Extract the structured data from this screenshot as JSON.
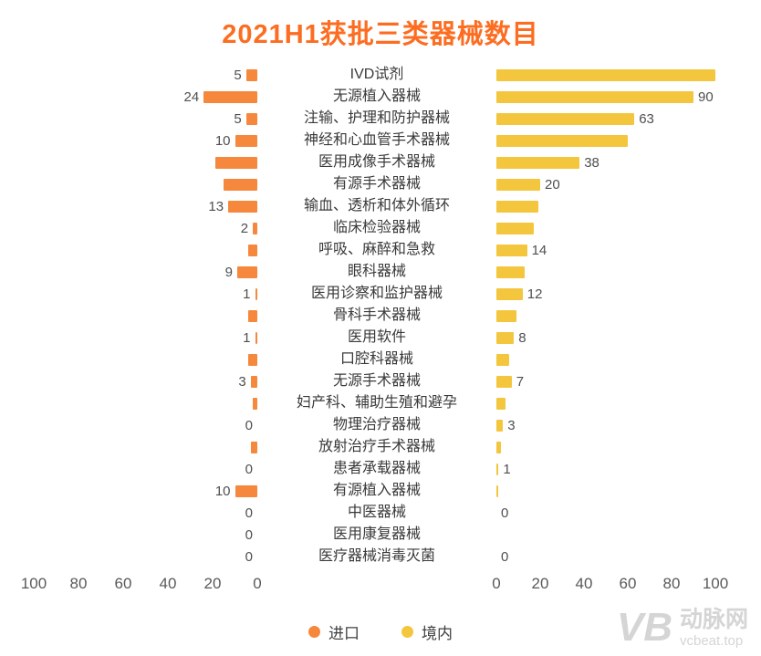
{
  "title": "2021H1获批三类器械数目",
  "colors": {
    "title": "#FD6D21",
    "import_bar": "#F5883D",
    "domestic_bar": "#F4C63E",
    "text": "#3A3A3A",
    "axis_text": "#595959",
    "watermark": "#D5D5D5"
  },
  "axis": {
    "left_ticks": [
      "100",
      "80",
      "60",
      "40",
      "20",
      "0"
    ],
    "right_ticks": [
      "0",
      "20",
      "40",
      "60",
      "80",
      "100"
    ],
    "max": 100
  },
  "legend": {
    "items": [
      {
        "label": "进口",
        "color": "#F5883D"
      },
      {
        "label": "境内",
        "color": "#F4C63E"
      }
    ]
  },
  "watermark": {
    "logo_text": "VB",
    "brand": "动脉网",
    "site": "vcbeat.top"
  },
  "chart_data": {
    "type": "bar",
    "variant": "diverging-horizontal-tornado",
    "title": "2021H1获批三类器械数目",
    "xlim": [
      0,
      100
    ],
    "grid": false,
    "legend_position": "bottom",
    "categories": [
      "IVD试剂",
      "无源植入器械",
      "注输、护理和防护器械",
      "神经和心血管手术器械",
      "医用成像手术器械",
      "有源手术器械",
      "输血、透析和体外循环",
      "临床检验器械",
      "呼吸、麻醉和急救",
      "眼科器械",
      "医用诊察和监护器械",
      "骨科手术器械",
      "医用软件",
      "口腔科器械",
      "无源手术器械",
      "妇产科、辅助生殖和避孕",
      "物理治疗器械",
      "放射治疗手术器械",
      "患者承载器械",
      "有源植入器械",
      "中医器械",
      "医用康复器械",
      "医疗器械消毒灭菌"
    ],
    "series": [
      {
        "name": "进口",
        "side": "left",
        "color": "#F5883D",
        "values": [
          5,
          24,
          5,
          10,
          19,
          15,
          13,
          2,
          4,
          9,
          1,
          4,
          1,
          4,
          3,
          2,
          0,
          3,
          0,
          10,
          0,
          0,
          0
        ],
        "visible_labels": [
          "5",
          "24",
          "5",
          "10",
          "",
          "",
          "13",
          "2",
          "",
          "9",
          "1",
          "",
          "1",
          "",
          "3",
          "",
          "0",
          "",
          "0",
          "10",
          "0",
          "0",
          "0"
        ]
      },
      {
        "name": "境内",
        "side": "right",
        "color": "#F4C63E",
        "values": [
          100,
          90,
          63,
          60,
          38,
          20,
          19,
          17,
          14,
          13,
          12,
          9,
          8,
          6,
          7,
          4,
          3,
          2,
          1,
          1,
          0,
          0,
          0
        ],
        "visible_labels": [
          "",
          "90",
          "63",
          "",
          "38",
          "20",
          "",
          "",
          "14",
          "",
          "12",
          "",
          "8",
          "",
          "7",
          "",
          "3",
          "",
          "1",
          "",
          "0",
          "",
          "0"
        ]
      }
    ]
  }
}
